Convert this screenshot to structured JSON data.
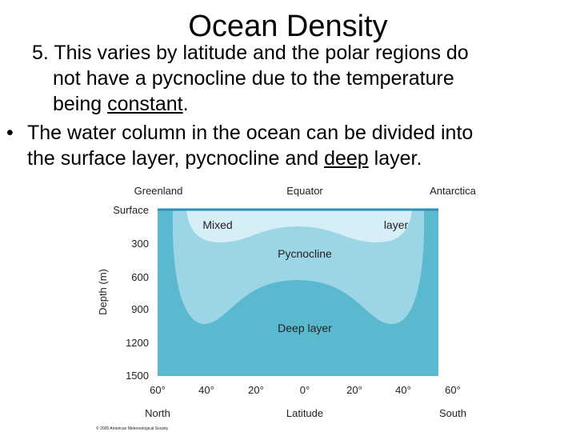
{
  "slide": {
    "title": "Ocean Density",
    "point5": {
      "line1": "5.  This varies by latitude and the polar regions do",
      "line2": "not have a pycnocline due to the temperature",
      "line3_prefix": "being ",
      "line3_underlined": "constant",
      "line3_suffix": "."
    },
    "bullet": {
      "symbol": "•",
      "line1": "The water column in the ocean can be divided into",
      "line2_prefix": "the surface layer, pycnocline and ",
      "line2_underlined": "deep",
      "line2_suffix": " layer."
    }
  },
  "diagram": {
    "top_labels": {
      "left": "Greenland",
      "center": "Equator",
      "right": "Antarctica"
    },
    "y_axis_title": "Depth (m)",
    "y_ticks": [
      "Surface",
      "300",
      "600",
      "900",
      "1200",
      "1500"
    ],
    "x_ticks": [
      "60°",
      "40°",
      "20°",
      "0°",
      "20°",
      "40°",
      "60°"
    ],
    "bottom_labels": {
      "left": "North",
      "center": "Latitude",
      "right": "South"
    },
    "layers": {
      "mixed_left": "Mixed",
      "mixed_right": "layer",
      "pycnocline": "Pycnocline",
      "deep": "Deep layer"
    },
    "credit": "© 2005 American Meteorological Society",
    "colors": {
      "deep": "#5ab8cf",
      "pycnocline": "#9cd5e6",
      "mixed": "#d6eff6",
      "surface": "#2f8fb4"
    }
  }
}
